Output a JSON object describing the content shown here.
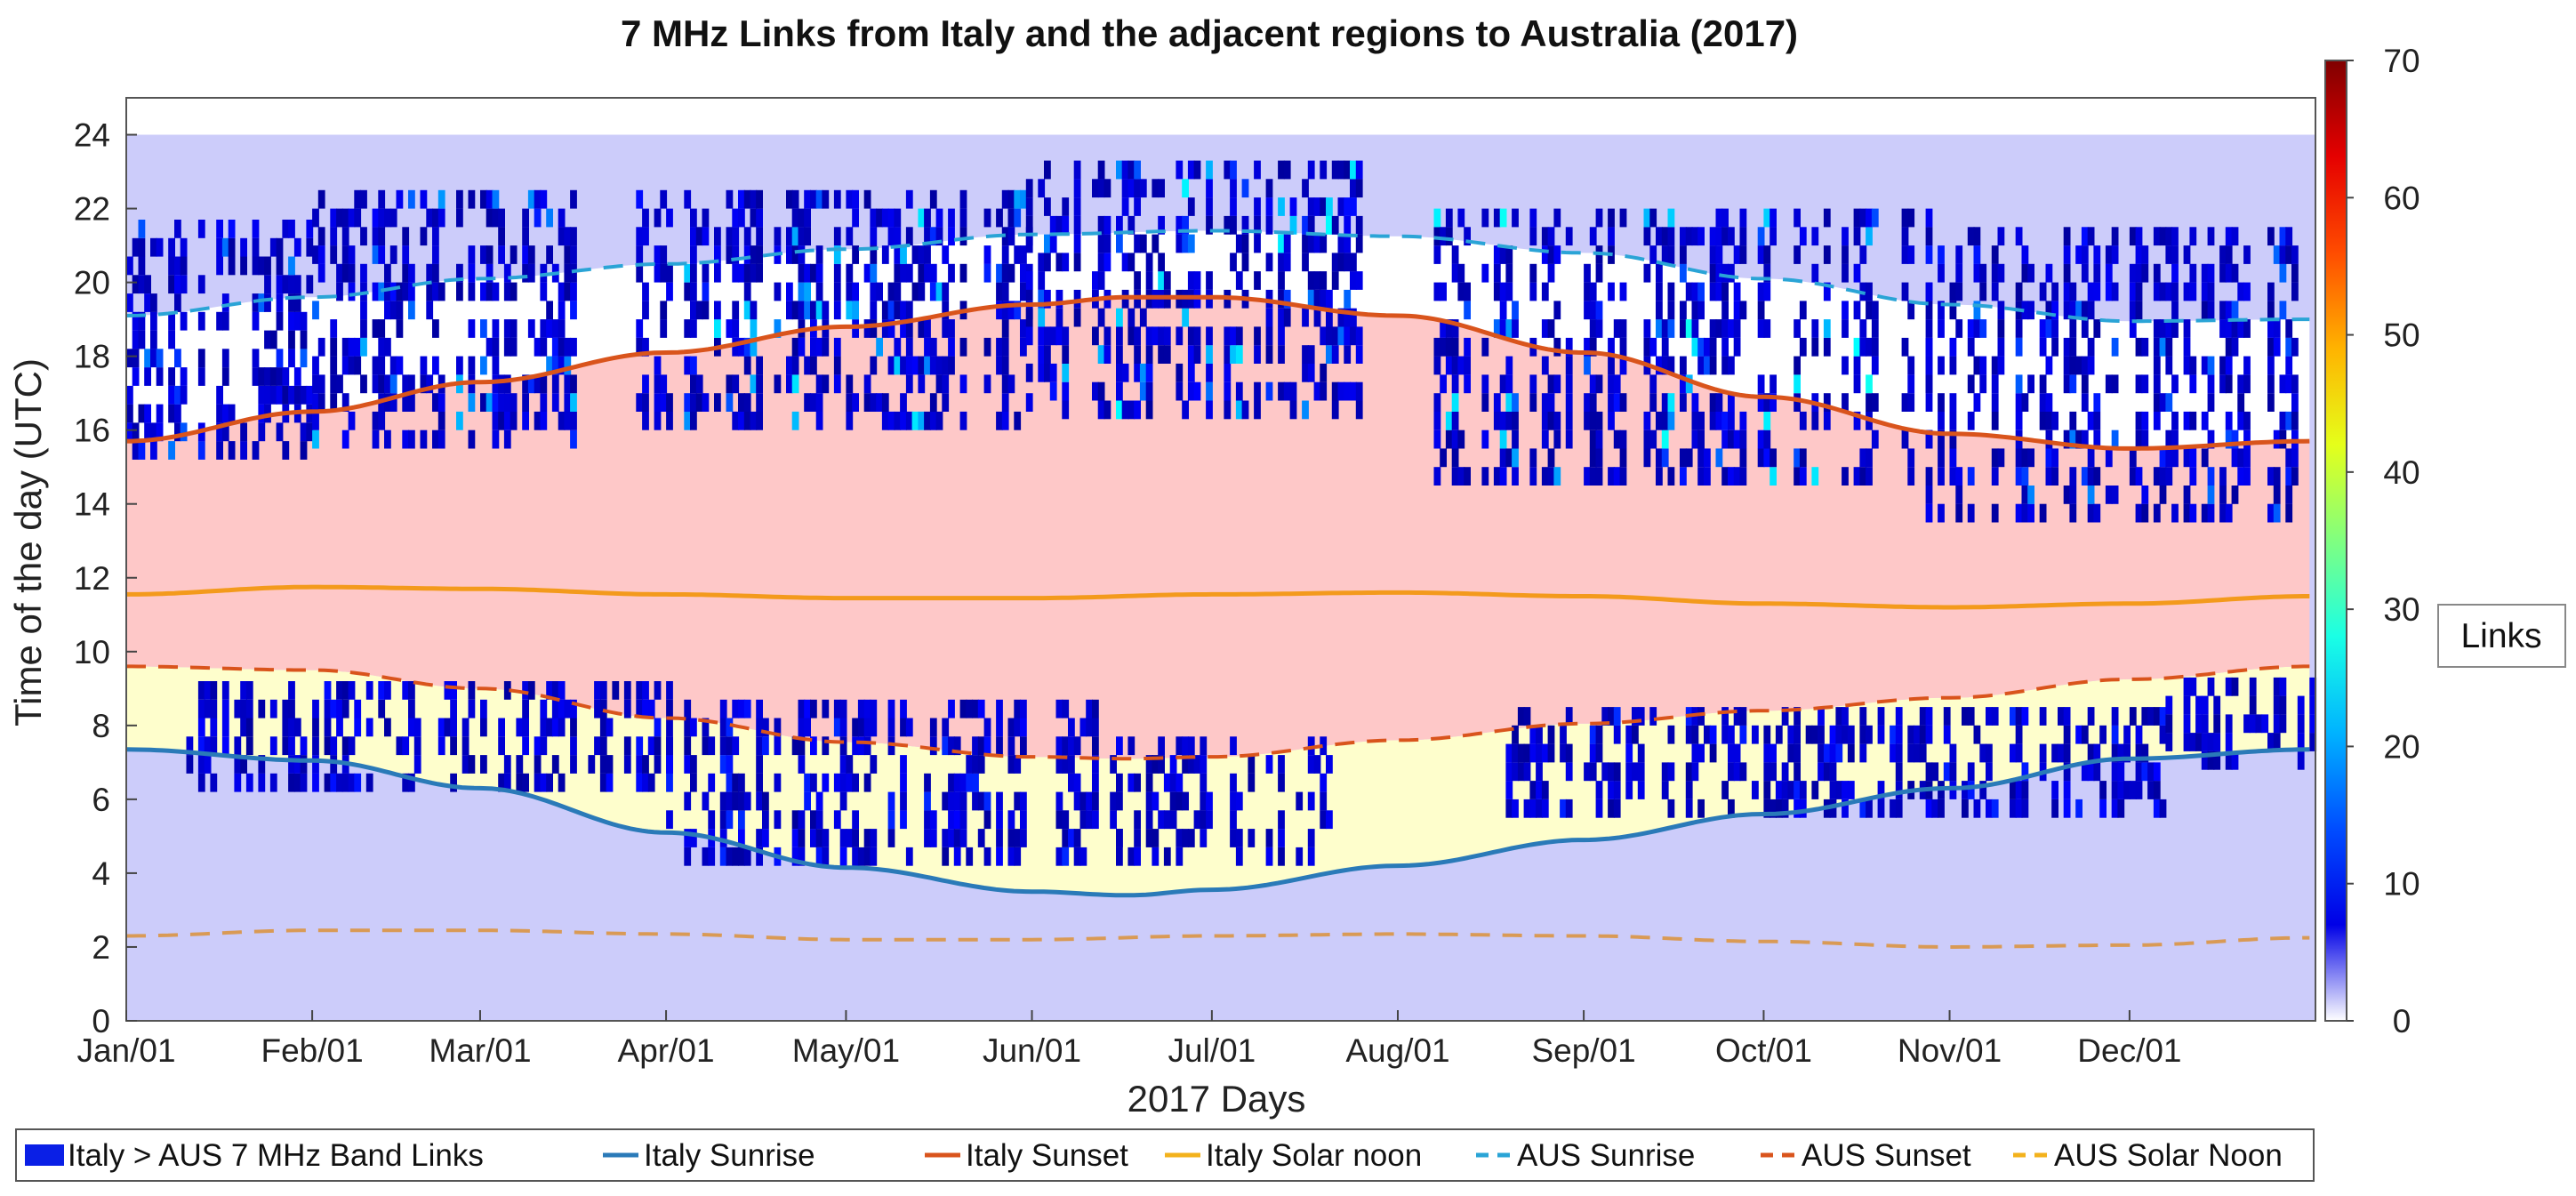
{
  "chart_data": {
    "type": "heatmap",
    "title": "7 MHz Links from Italy and the adjacent regions to Australia (2017)",
    "xlabel": "2017 Days",
    "ylabel": "Time of the day (UTC)",
    "xlim": [
      0,
      365
    ],
    "ylim": [
      0,
      25
    ],
    "x_ticks": [
      {
        "day": 0,
        "label": "Jan/01"
      },
      {
        "day": 31,
        "label": "Feb/01"
      },
      {
        "day": 59,
        "label": "Mar/01"
      },
      {
        "day": 90,
        "label": "Apr/01"
      },
      {
        "day": 120,
        "label": "May/01"
      },
      {
        "day": 151,
        "label": "Jun/01"
      },
      {
        "day": 181,
        "label": "Jul/01"
      },
      {
        "day": 212,
        "label": "Aug/01"
      },
      {
        "day": 243,
        "label": "Sep/01"
      },
      {
        "day": 273,
        "label": "Oct/01"
      },
      {
        "day": 304,
        "label": "Nov/01"
      },
      {
        "day": 334,
        "label": "Dec/01"
      }
    ],
    "y_ticks": [
      0,
      2,
      4,
      6,
      8,
      10,
      12,
      14,
      16,
      18,
      20,
      22,
      24
    ],
    "colorbar": {
      "label": "Links",
      "range": [
        0,
        70
      ],
      "ticks": [
        0,
        10,
        20,
        30,
        40,
        50,
        60,
        70
      ],
      "colormap": "jet"
    },
    "background_regions": [
      {
        "name": "night",
        "color": "#ccccfa"
      },
      {
        "name": "Australia daytime",
        "color": "#fec8c8"
      },
      {
        "name": "Italy night / AUS dawn window",
        "color": "#fefecc"
      },
      {
        "name": "AUS night / Italy day window",
        "color": "#ffffff"
      }
    ],
    "series": [
      {
        "name": "Italy Sunrise",
        "color": "#2a7ab8",
        "style": "solid",
        "x": [
          0,
          31,
          59,
          90,
          120,
          151,
          167,
          181,
          212,
          243,
          273,
          304,
          334,
          364
        ],
        "y": [
          7.35,
          7.05,
          6.3,
          5.1,
          4.15,
          3.5,
          3.4,
          3.55,
          4.2,
          4.9,
          5.6,
          6.3,
          7.1,
          7.35
        ]
      },
      {
        "name": "Italy Sunset",
        "color": "#d9541c",
        "style": "solid",
        "x": [
          0,
          31,
          59,
          90,
          120,
          151,
          167,
          181,
          212,
          243,
          273,
          304,
          334,
          364
        ],
        "y": [
          15.7,
          16.5,
          17.3,
          18.1,
          18.8,
          19.4,
          19.6,
          19.6,
          19.1,
          18.1,
          16.9,
          15.9,
          15.5,
          15.7
        ]
      },
      {
        "name": "Italy Solar noon",
        "color": "#f39a1c",
        "style": "solid",
        "x": [
          0,
          31,
          59,
          90,
          120,
          151,
          181,
          212,
          243,
          273,
          304,
          334,
          364
        ],
        "y": [
          11.55,
          11.75,
          11.7,
          11.55,
          11.45,
          11.45,
          11.55,
          11.6,
          11.5,
          11.3,
          11.2,
          11.3,
          11.5
        ]
      },
      {
        "name": "AUS Sunrise",
        "color": "#2aa4d6",
        "style": "dashed",
        "x": [
          0,
          31,
          59,
          90,
          120,
          151,
          181,
          212,
          243,
          273,
          304,
          334,
          364
        ],
        "y": [
          19.1,
          19.6,
          20.1,
          20.5,
          20.9,
          21.3,
          21.4,
          21.25,
          20.8,
          20.1,
          19.4,
          18.95,
          19.0
        ]
      },
      {
        "name": "AUS Sunset",
        "color": "#d9541c",
        "style": "dashed",
        "x": [
          0,
          31,
          59,
          90,
          120,
          151,
          167,
          181,
          212,
          243,
          273,
          304,
          334,
          364
        ],
        "y": [
          9.6,
          9.5,
          9.0,
          8.2,
          7.55,
          7.15,
          7.1,
          7.15,
          7.6,
          8.05,
          8.4,
          8.75,
          9.25,
          9.6
        ]
      },
      {
        "name": "AUS Solar Noon",
        "color": "#d99a55",
        "style": "dashed",
        "x": [
          0,
          31,
          59,
          90,
          120,
          151,
          181,
          212,
          243,
          273,
          304,
          334,
          364
        ],
        "y": [
          2.3,
          2.45,
          2.45,
          2.35,
          2.2,
          2.2,
          2.3,
          2.35,
          2.3,
          2.15,
          2.0,
          2.05,
          2.25
        ]
      }
    ],
    "link_clusters": [
      {
        "day_start": 0,
        "day_end": 30,
        "hour_start": 15.2,
        "hour_end": 21.5,
        "max_links": 18
      },
      {
        "day_start": 31,
        "day_end": 75,
        "hour_start": 15.5,
        "hour_end": 22.5,
        "max_links": 22
      },
      {
        "day_start": 85,
        "day_end": 150,
        "hour_start": 16.0,
        "hour_end": 22.3,
        "max_links": 25
      },
      {
        "day_start": 150,
        "day_end": 205,
        "hour_start": 16.3,
        "hour_end": 23.0,
        "max_links": 28
      },
      {
        "day_start": 215,
        "day_end": 300,
        "hour_start": 14.5,
        "hour_end": 22.0,
        "max_links": 28
      },
      {
        "day_start": 300,
        "day_end": 364,
        "hour_start": 13.5,
        "hour_end": 21.5,
        "max_links": 18
      },
      {
        "day_start": 10,
        "day_end": 90,
        "hour_start": 6.2,
        "hour_end": 9.0,
        "max_links": 10
      },
      {
        "day_start": 90,
        "day_end": 165,
        "hour_start": 4.2,
        "hour_end": 8.3,
        "max_links": 12
      },
      {
        "day_start": 165,
        "day_end": 200,
        "hour_start": 4.2,
        "hour_end": 7.3,
        "max_links": 8
      },
      {
        "day_start": 230,
        "day_end": 340,
        "hour_start": 5.5,
        "hour_end": 8.5,
        "max_links": 12
      },
      {
        "day_start": 340,
        "day_end": 364,
        "hour_start": 6.8,
        "hour_end": 9.3,
        "max_links": 6
      }
    ],
    "legend_position": "bottom",
    "legend": [
      {
        "label": "Italy > AUS 7 MHz Band Links",
        "color": "#0a1fe6",
        "kind": "patch"
      },
      {
        "label": "Italy Sunrise",
        "color": "#2a7ab8",
        "kind": "solid"
      },
      {
        "label": "Italy Sunset",
        "color": "#d9541c",
        "kind": "solid"
      },
      {
        "label": "Italy Solar noon",
        "color": "#f3b21c",
        "kind": "solid"
      },
      {
        "label": "AUS Sunrise",
        "color": "#2aa4d6",
        "kind": "dashed"
      },
      {
        "label": "AUS Sunset",
        "color": "#d9541c",
        "kind": "dashed"
      },
      {
        "label": "AUS Solar Noon",
        "color": "#f3b21c",
        "kind": "dashed"
      }
    ]
  }
}
